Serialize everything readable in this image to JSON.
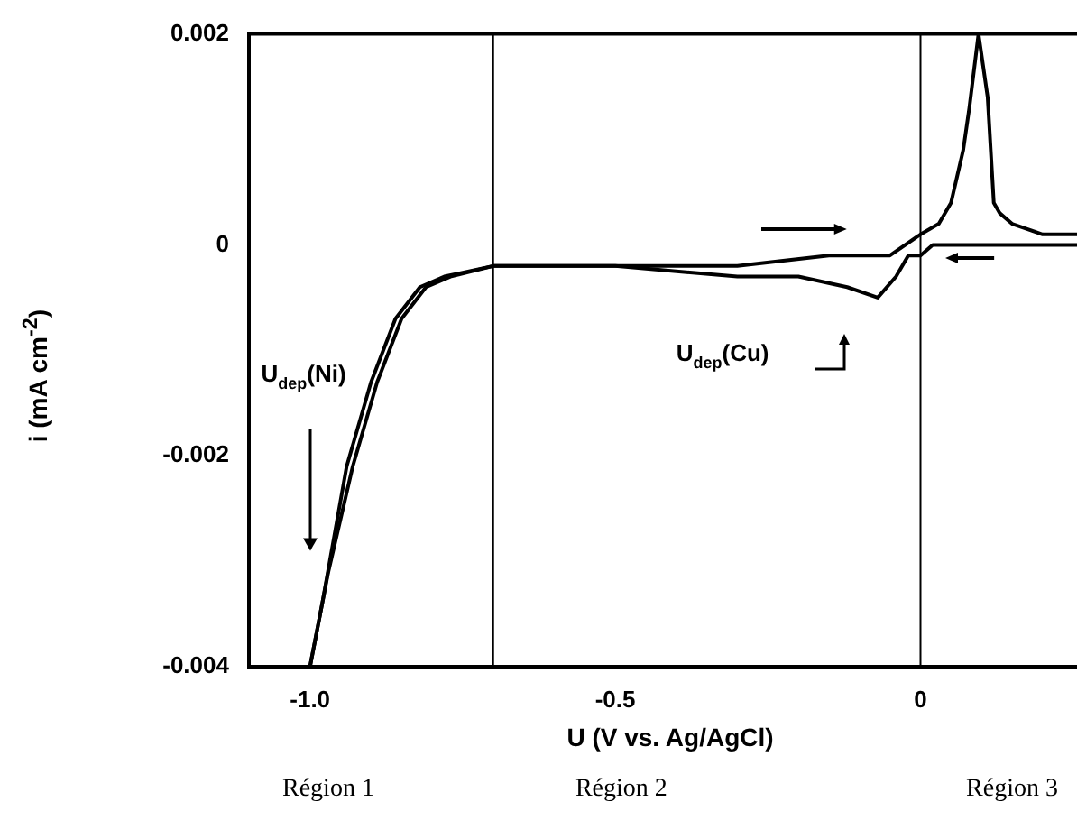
{
  "chart_data": {
    "type": "line",
    "xlabel": "U (V vs. Ag/AgCl)",
    "ylabel": "i (mA cm$^{-2}$)",
    "xlim": [
      -1.1,
      0.28
    ],
    "xticks": [
      {
        "value": -1,
        "label": "-1.0"
      },
      -0.5,
      0
    ],
    "ylim": [
      -0.004,
      0.002
    ],
    "yticks": [
      0.002,
      0,
      -0.002,
      -0.004
    ],
    "grid": false,
    "legend": false,
    "marker": "none",
    "line_style": "solid",
    "series": [
      {
        "color": "#000000",
        "x": [
          0.28,
          0.2,
          0.1,
          0.02,
          0,
          -0.02,
          -0.04,
          -0.07,
          -0.12,
          -0.2,
          -0.3,
          -0.5,
          -0.7,
          -0.78,
          -0.82,
          -0.86,
          -0.9,
          -0.94,
          -0.98,
          -1.0
        ],
        "values": [
          0,
          0,
          0,
          0,
          -0.0001,
          -0.0001,
          -0.0003,
          -0.0005,
          -0.0004,
          -0.0003,
          -0.0003,
          -0.0002,
          -0.0002,
          -0.0003,
          -0.0004,
          -0.0007,
          -0.0013,
          -0.0021,
          -0.0034,
          -0.004
        ]
      },
      {
        "color": "#000000",
        "x": [
          -1.0,
          -0.97,
          -0.93,
          -0.89,
          -0.85,
          -0.81,
          -0.77,
          -0.7,
          -0.5,
          -0.3,
          -0.15,
          -0.05,
          0,
          0.03,
          0.05,
          0.07,
          0.08,
          0.095,
          0.11,
          0.12,
          0.13,
          0.15,
          0.2,
          0.28
        ],
        "values": [
          -0.004,
          -0.0031,
          -0.0021,
          -0.0013,
          -0.0007,
          -0.0004,
          -0.0003,
          -0.0002,
          -0.0002,
          -0.0002,
          -0.0001,
          -0.0001,
          0.0001,
          0.0002,
          0.0004,
          0.0009,
          0.0013,
          0.002,
          0.0014,
          0.0004,
          0.0003,
          0.0002,
          0.0001,
          0.0001
        ]
      }
    ],
    "ref_lines": [
      {
        "axis": "x",
        "value": -0.7
      },
      {
        "axis": "x",
        "value": 0
      }
    ],
    "annotations": [
      "U$_{dep}$(Ni)",
      "U$_{dep}$(Cu)",
      "Région 1",
      "Région 2",
      "Région 3"
    ]
  }
}
